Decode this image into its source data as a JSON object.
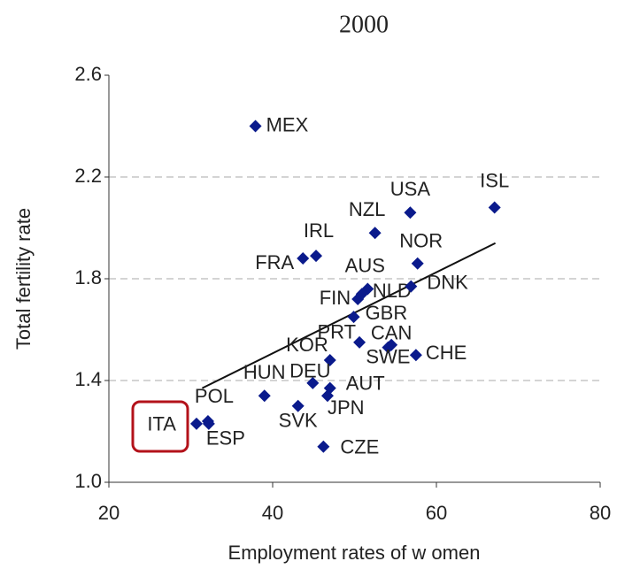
{
  "chart_data": {
    "type": "scatter",
    "title": "2000",
    "x_label": "Employment rates of w omen",
    "y_label": "Total fertility rate",
    "xlim": [
      20,
      80
    ],
    "xticks": [
      20,
      40,
      60,
      80
    ],
    "ylim": [
      1.0,
      2.6
    ],
    "yticks": [
      {
        "value": 1.0,
        "label": "1.0"
      },
      1.4,
      1.8,
      2.2,
      2.6
    ],
    "grid": true,
    "color": "#0a1a8c",
    "labels": [
      "MEX",
      "ISL",
      "USA",
      "NZL",
      "NOR",
      "IRL",
      "FRA",
      "AUS",
      "FIN",
      "NLD",
      "DNK",
      "GBR",
      "PRT",
      "CAN",
      "SWE",
      "CHE",
      "KOR",
      "HUN",
      "DEU",
      "AUT",
      "JPN",
      "SVK",
      "POL",
      "ITA",
      "ESP",
      "CZE"
    ],
    "x": [
      37.9,
      67.1,
      56.8,
      52.5,
      57.7,
      45.3,
      43.7,
      51.6,
      50.4,
      50.9,
      56.9,
      49.9,
      50.6,
      54.5,
      54.1,
      57.5,
      47.0,
      39.0,
      44.9,
      47.0,
      46.7,
      43.1,
      32.1,
      30.7,
      32.2,
      46.2
    ],
    "y": [
      2.4,
      2.08,
      2.06,
      1.98,
      1.86,
      1.89,
      1.88,
      1.76,
      1.72,
      1.74,
      1.77,
      1.65,
      1.55,
      1.54,
      1.53,
      1.5,
      1.48,
      1.34,
      1.39,
      1.37,
      1.34,
      1.3,
      1.24,
      1.23,
      1.23,
      1.14
    ],
    "trendline": {
      "x": [
        31.4,
        67.2
      ],
      "y": [
        1.37,
        1.94
      ],
      "color": "#111111"
    }
  }
}
